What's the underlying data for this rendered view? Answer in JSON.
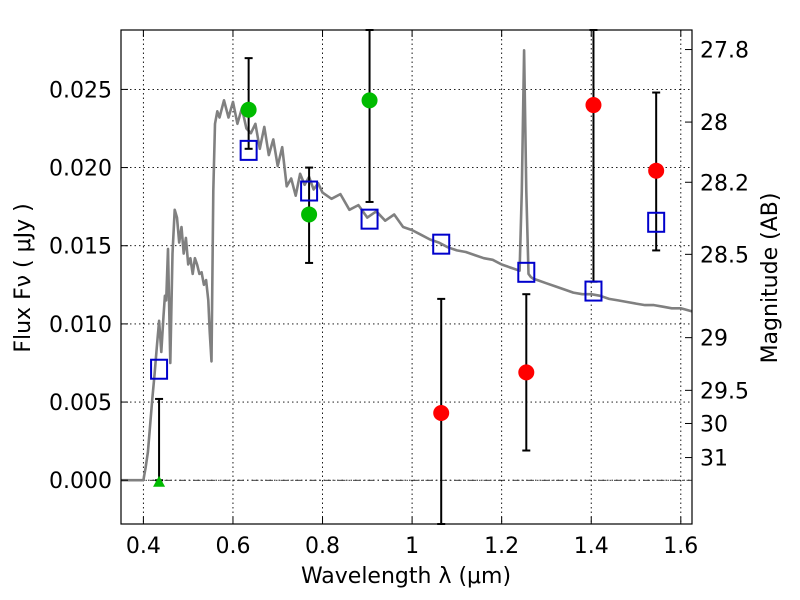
{
  "chart_data": {
    "type": "scatter",
    "title": "",
    "xlabel": "Wavelength  λ (μm)",
    "ylabel": "Flux  Fν  ( μJy )",
    "ylabel_right": "Magnitude (AB)",
    "xlim": [
      0.35,
      1.625
    ],
    "ylim": [
      -0.0028,
      0.0288
    ],
    "grid": true,
    "x_ticks": [
      0.4,
      0.6,
      0.8,
      1.0,
      1.2,
      1.4,
      1.6
    ],
    "x_tick_labels": [
      "0.4",
      "0.6",
      "0.8",
      "1",
      "1.2",
      "1.4",
      "1.6"
    ],
    "y_ticks": [
      0.0,
      0.005,
      0.01,
      0.015,
      0.02,
      0.025
    ],
    "y_tick_labels": [
      "0.000",
      "0.005",
      "0.010",
      "0.015",
      "0.020",
      "0.025"
    ],
    "right_ticks": [
      {
        "label": "27.8",
        "flux": 0.02755
      },
      {
        "label": "28",
        "flux": 0.02291
      },
      {
        "label": "28.2",
        "flux": 0.01906
      },
      {
        "label": "28.5",
        "flux": 0.01445
      },
      {
        "label": "29",
        "flux": 0.00912
      },
      {
        "label": "29.5",
        "flux": 0.00575
      },
      {
        "label": "30",
        "flux": 0.00363
      },
      {
        "label": "31",
        "flux": 0.00145
      }
    ],
    "colors": {
      "model": "#808080",
      "green": "#00bb00",
      "red": "#ff0000",
      "box": "#0000cc",
      "errorbar": "#000000"
    },
    "model_spectrum": {
      "x": [
        0.35,
        0.4,
        0.405,
        0.41,
        0.415,
        0.42,
        0.425,
        0.43,
        0.435,
        0.44,
        0.445,
        0.448,
        0.451,
        0.455,
        0.46,
        0.465,
        0.47,
        0.475,
        0.48,
        0.485,
        0.49,
        0.495,
        0.5,
        0.505,
        0.51,
        0.515,
        0.52,
        0.525,
        0.53,
        0.535,
        0.54,
        0.545,
        0.548,
        0.552,
        0.556,
        0.56,
        0.565,
        0.57,
        0.58,
        0.59,
        0.6,
        0.61,
        0.62,
        0.63,
        0.64,
        0.65,
        0.66,
        0.67,
        0.68,
        0.69,
        0.7,
        0.71,
        0.72,
        0.73,
        0.74,
        0.75,
        0.76,
        0.77,
        0.78,
        0.79,
        0.8,
        0.82,
        0.84,
        0.86,
        0.88,
        0.9,
        0.92,
        0.94,
        0.96,
        0.98,
        1.0,
        1.02,
        1.04,
        1.06,
        1.08,
        1.1,
        1.12,
        1.14,
        1.16,
        1.18,
        1.2,
        1.22,
        1.24,
        1.245,
        1.25,
        1.255,
        1.26,
        1.265,
        1.27,
        1.28,
        1.3,
        1.32,
        1.34,
        1.36,
        1.38,
        1.4,
        1.42,
        1.44,
        1.46,
        1.48,
        1.5,
        1.52,
        1.54,
        1.56,
        1.58,
        1.6,
        1.625
      ],
      "y": [
        0.0,
        0.0,
        0.0008,
        0.0018,
        0.0035,
        0.0052,
        0.0068,
        0.0085,
        0.0102,
        0.0082,
        0.0105,
        0.0118,
        0.0115,
        0.0148,
        0.0075,
        0.0145,
        0.0173,
        0.0168,
        0.0152,
        0.0162,
        0.0145,
        0.0155,
        0.0138,
        0.0142,
        0.0132,
        0.0142,
        0.0138,
        0.0132,
        0.0133,
        0.0125,
        0.0128,
        0.0115,
        0.0095,
        0.0076,
        0.0185,
        0.0228,
        0.0236,
        0.0232,
        0.0243,
        0.0232,
        0.0242,
        0.0228,
        0.0238,
        0.0225,
        0.0222,
        0.0228,
        0.0212,
        0.0226,
        0.0208,
        0.0218,
        0.0201,
        0.0213,
        0.0188,
        0.0193,
        0.0182,
        0.0196,
        0.0189,
        0.0194,
        0.0186,
        0.019,
        0.0184,
        0.018,
        0.0183,
        0.0173,
        0.0176,
        0.0168,
        0.0172,
        0.0166,
        0.017,
        0.0162,
        0.016,
        0.0157,
        0.0154,
        0.0152,
        0.0149,
        0.0147,
        0.0146,
        0.0144,
        0.0142,
        0.0141,
        0.0138,
        0.0136,
        0.0134,
        0.0185,
        0.0275,
        0.0185,
        0.0132,
        0.013,
        0.0129,
        0.0128,
        0.0126,
        0.0124,
        0.0122,
        0.012,
        0.0119,
        0.0119,
        0.0118,
        0.0116,
        0.0115,
        0.0114,
        0.0113,
        0.0112,
        0.0112,
        0.0111,
        0.011,
        0.011,
        0.0108
      ]
    },
    "model_photometry": {
      "x": [
        0.435,
        0.635,
        0.77,
        0.905,
        1.065,
        1.255,
        1.405,
        1.545
      ],
      "y": [
        0.0071,
        0.0211,
        0.0185,
        0.0167,
        0.0151,
        0.0133,
        0.0121,
        0.0165
      ]
    },
    "observed": [
      {
        "x": 0.435,
        "y": -0.0001,
        "err_low": 0.0,
        "err_high": 0.0052,
        "marker": "triangle",
        "color": "green"
      },
      {
        "x": 0.635,
        "y": 0.0237,
        "err_low": null,
        "err_high": null,
        "marker": "circle",
        "color": "green"
      },
      {
        "x": 0.77,
        "y": 0.017,
        "err_low": 0.0139,
        "err_high": 0.02,
        "marker": "circle",
        "color": "green"
      },
      {
        "x": 0.905,
        "y": 0.0243,
        "err_low": 0.0178,
        "err_high": 0.0288,
        "marker": "circle",
        "color": "green"
      },
      {
        "x": 1.065,
        "y": 0.0043,
        "err_low": -0.0028,
        "err_high": 0.0116,
        "marker": "circle",
        "color": "red"
      },
      {
        "x": 1.255,
        "y": 0.0069,
        "err_low": 0.0019,
        "err_high": 0.0119,
        "marker": "circle",
        "color": "red"
      },
      {
        "x": 1.405,
        "y": 0.024,
        "err_low": 0.0127,
        "err_high": 0.0288,
        "marker": "circle",
        "color": "red"
      },
      {
        "x": 1.545,
        "y": 0.0198,
        "err_low": 0.0147,
        "err_high": 0.0248,
        "marker": "circle",
        "color": "red"
      }
    ],
    "extra_errorbar": {
      "x": 0.635,
      "err_low": 0.0212,
      "err_high": 0.027
    }
  }
}
